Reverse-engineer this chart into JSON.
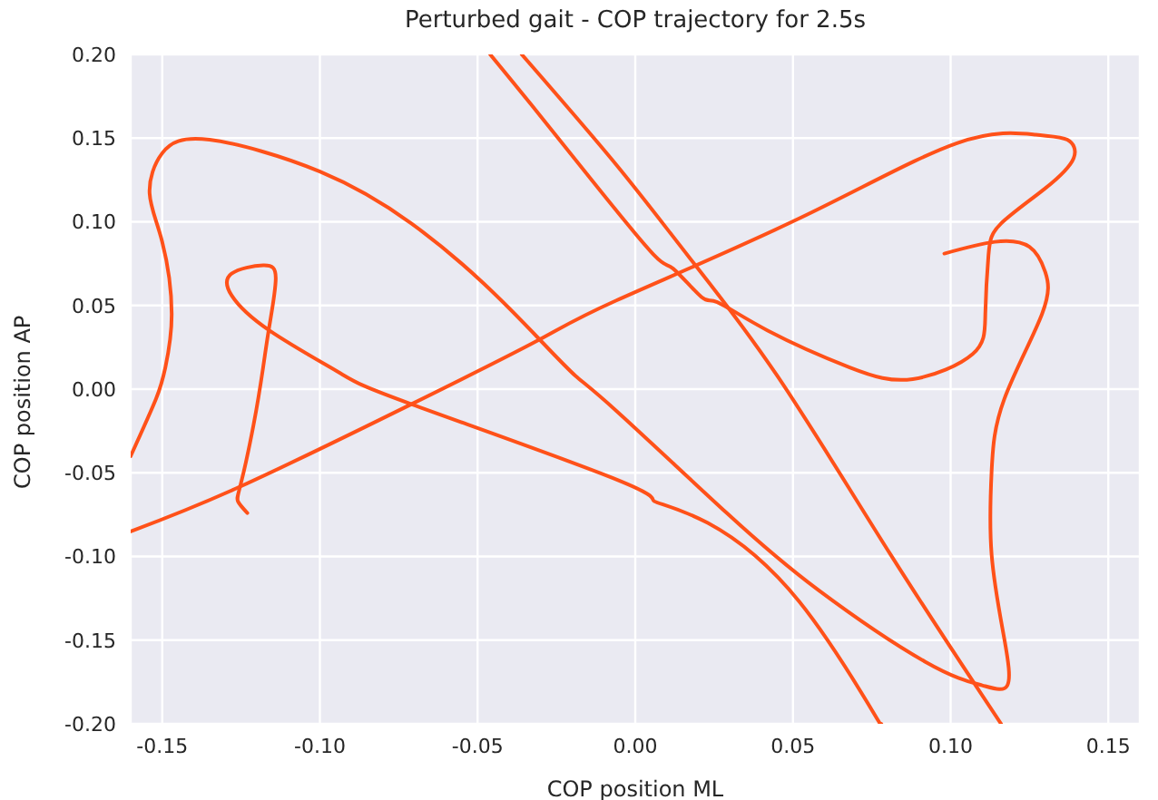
{
  "chart_data": {
    "type": "line",
    "title": "Perturbed gait - COP trajectory for 2.5s",
    "xlabel": "COP position ML",
    "ylabel": "COP position AP",
    "series": [
      {
        "color": "#ff5119",
        "x": [
          -0.123,
          -0.126,
          -0.125,
          -0.121,
          -0.118,
          -0.116,
          -0.114,
          -0.118,
          -0.128,
          -0.128,
          -0.116,
          -0.094,
          -0.071,
          -0.006,
          0.006,
          0.023,
          0.052,
          0.077,
          0.078
        ],
        "values": [
          -0.074,
          -0.067,
          -0.056,
          -0.021,
          0.013,
          0.038,
          0.066,
          0.074,
          0.069,
          0.056,
          0.035,
          0.01,
          -0.009,
          -0.054,
          -0.067,
          -0.08,
          -0.127,
          -0.198,
          -0.2
        ]
      },
      {
        "color": "#ff5119",
        "x": [
          0.116,
          0.081,
          0.045,
          0.017,
          -0.006,
          -0.036
        ],
        "values": [
          -0.2,
          -0.099,
          0.008,
          0.079,
          0.134,
          0.2
        ]
      },
      {
        "color": "#ff5119",
        "x": [
          -0.046,
          -0.033,
          -0.013,
          0.006,
          0.012,
          0.021,
          0.026,
          0.042,
          0.068,
          0.088,
          0.107,
          0.111,
          0.112,
          0.116,
          0.13,
          0.139,
          0.137,
          0.127,
          0.102,
          0.052,
          -0.006,
          -0.031,
          -0.071,
          -0.125,
          -0.16
        ],
        "values": [
          0.2,
          0.17,
          0.123,
          0.08,
          0.072,
          0.055,
          0.052,
          0.035,
          0.013,
          0.006,
          0.021,
          0.045,
          0.08,
          0.099,
          0.12,
          0.138,
          0.149,
          0.152,
          0.147,
          0.102,
          0.053,
          0.029,
          -0.009,
          -0.058,
          -0.085
        ]
      },
      {
        "color": "#ff5119",
        "x": [
          -0.16,
          -0.152,
          -0.149,
          -0.147,
          -0.15,
          -0.154,
          -0.15,
          -0.135,
          -0.1,
          -0.071,
          -0.048,
          -0.03,
          -0.019,
          -0.006,
          0.029,
          0.058,
          0.092,
          0.11,
          0.118,
          0.117,
          0.113,
          0.113,
          0.117,
          0.129,
          0.13,
          0.125,
          0.114,
          0.098
        ],
        "values": [
          -0.04,
          -0.006,
          0.013,
          0.045,
          0.088,
          0.117,
          0.141,
          0.149,
          0.13,
          0.099,
          0.063,
          0.029,
          0.008,
          -0.013,
          -0.074,
          -0.12,
          -0.163,
          -0.177,
          -0.177,
          -0.149,
          -0.099,
          -0.049,
          -0.006,
          0.045,
          0.07,
          0.085,
          0.088,
          0.081
        ]
      }
    ],
    "xlim": [
      -0.16,
      0.16
    ],
    "ylim": [
      -0.2,
      0.2
    ],
    "xticks": [
      {
        "value": -0.15,
        "label": "-0.15"
      },
      {
        "value": -0.1,
        "label": "-0.10"
      },
      {
        "value": -0.05,
        "label": "-0.05"
      },
      {
        "value": 0,
        "label": "0.00"
      },
      {
        "value": 0.05,
        "label": "0.05"
      },
      {
        "value": 0.1,
        "label": "0.10"
      },
      {
        "value": 0.15,
        "label": "0.15"
      }
    ],
    "yticks": [
      {
        "value": -0.2,
        "label": "-0.20"
      },
      {
        "value": -0.15,
        "label": "-0.15"
      },
      {
        "value": -0.1,
        "label": "-0.10"
      },
      {
        "value": -0.05,
        "label": "-0.05"
      },
      {
        "value": 0,
        "label": "0.00"
      },
      {
        "value": 0.05,
        "label": "0.05"
      },
      {
        "value": 0.1,
        "label": "0.10"
      },
      {
        "value": 0.15,
        "label": "0.15"
      },
      {
        "value": 0.2,
        "label": "0.20"
      }
    ],
    "grid": true,
    "marker": "none",
    "line_style": "solid"
  }
}
